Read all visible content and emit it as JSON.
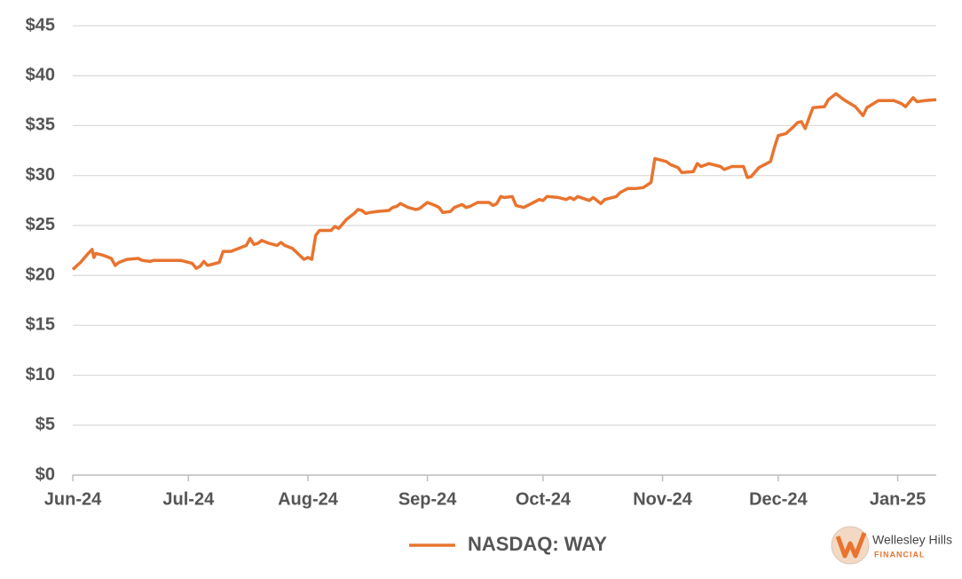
{
  "chart_data": {
    "type": "line",
    "x": [
      0,
      2,
      4,
      5,
      5.5,
      6,
      8,
      10,
      11,
      12,
      14,
      17,
      18,
      20,
      21,
      25,
      28,
      31,
      32,
      33,
      34,
      35,
      38,
      39,
      41,
      45,
      46,
      47,
      48,
      49,
      51,
      53,
      54,
      55,
      57,
      60,
      61,
      62,
      63,
      64,
      67,
      68,
      69,
      71,
      73,
      74,
      75,
      76,
      77,
      79,
      82,
      83,
      84,
      85,
      87,
      89,
      90,
      92,
      94,
      95,
      96,
      98,
      99,
      101,
      102,
      103,
      105,
      108,
      109,
      110,
      111,
      112,
      114,
      115,
      117,
      120,
      121,
      122,
      123,
      126,
      128,
      129,
      130,
      131,
      134,
      135,
      137,
      138,
      141,
      142,
      143,
      144,
      146,
      148,
      150,
      151,
      153,
      154,
      155,
      157,
      158,
      161,
      162,
      163,
      165,
      168,
      169,
      171,
      174,
      175,
      176,
      178,
      181,
      182,
      183,
      185,
      187,
      188,
      189,
      190,
      192,
      195,
      196,
      198,
      200,
      203,
      205,
      206,
      209,
      213,
      215,
      216,
      218,
      219,
      221,
      224
    ],
    "series": [
      {
        "name": "NASDAQ: WAY",
        "color": "#e8742f",
        "values": [
          20.6,
          21.3,
          22.2,
          22.6,
          21.8,
          22.2,
          22.0,
          21.7,
          21.0,
          21.3,
          21.6,
          21.7,
          21.5,
          21.4,
          21.5,
          21.5,
          21.5,
          21.2,
          20.7,
          20.9,
          21.4,
          21.0,
          21.3,
          22.4,
          22.4,
          23.0,
          23.7,
          23.1,
          23.2,
          23.5,
          23.2,
          23.0,
          23.3,
          23.0,
          22.7,
          21.6,
          21.8,
          21.6,
          24.0,
          24.5,
          24.5,
          24.9,
          24.7,
          25.6,
          26.2,
          26.6,
          26.5,
          26.2,
          26.3,
          26.4,
          26.5,
          26.8,
          26.9,
          27.2,
          26.8,
          26.6,
          26.7,
          27.3,
          27.0,
          26.8,
          26.3,
          26.4,
          26.8,
          27.1,
          26.8,
          26.9,
          27.3,
          27.3,
          27.0,
          27.2,
          27.9,
          27.8,
          27.9,
          27.0,
          26.8,
          27.4,
          27.6,
          27.5,
          27.9,
          27.8,
          27.6,
          27.8,
          27.6,
          27.9,
          27.5,
          27.8,
          27.2,
          27.6,
          27.9,
          28.3,
          28.5,
          28.7,
          28.7,
          28.8,
          29.3,
          31.7,
          31.5,
          31.4,
          31.1,
          30.8,
          30.3,
          30.4,
          31.2,
          30.9,
          31.2,
          30.9,
          30.6,
          30.9,
          30.9,
          29.8,
          29.9,
          30.8,
          31.4,
          32.8,
          34.0,
          34.2,
          34.9,
          35.3,
          35.4,
          34.7,
          36.8,
          36.9,
          37.6,
          38.2,
          37.6,
          36.9,
          36.0,
          36.8,
          37.5,
          37.5,
          37.2,
          36.9,
          37.8,
          37.4,
          37.5,
          37.6
        ]
      }
    ],
    "xlim": [
      0,
      224
    ],
    "xticks": [
      {
        "value": 0,
        "label": "Jun-24"
      },
      {
        "value": 30,
        "label": "Jul-24"
      },
      {
        "value": 61,
        "label": "Aug-24"
      },
      {
        "value": 92,
        "label": "Sep-24"
      },
      {
        "value": 122,
        "label": "Oct-24"
      },
      {
        "value": 153,
        "label": "Nov-24"
      },
      {
        "value": 183,
        "label": "Dec-24"
      },
      {
        "value": 214,
        "label": "Jan-25"
      }
    ],
    "ylim": [
      0,
      45
    ],
    "yticks": [
      {
        "value": 0,
        "label": "$0"
      },
      {
        "value": 5,
        "label": "$5"
      },
      {
        "value": 10,
        "label": "$10"
      },
      {
        "value": 15,
        "label": "$15"
      },
      {
        "value": 20,
        "label": "$20"
      },
      {
        "value": 25,
        "label": "$25"
      },
      {
        "value": 30,
        "label": "$30"
      },
      {
        "value": 35,
        "label": "$35"
      },
      {
        "value": 40,
        "label": "$40"
      },
      {
        "value": 45,
        "label": "$45"
      }
    ],
    "grid": true
  },
  "logo": {
    "name": "Wellesley Hills",
    "tagline": "FINANCIAL"
  }
}
